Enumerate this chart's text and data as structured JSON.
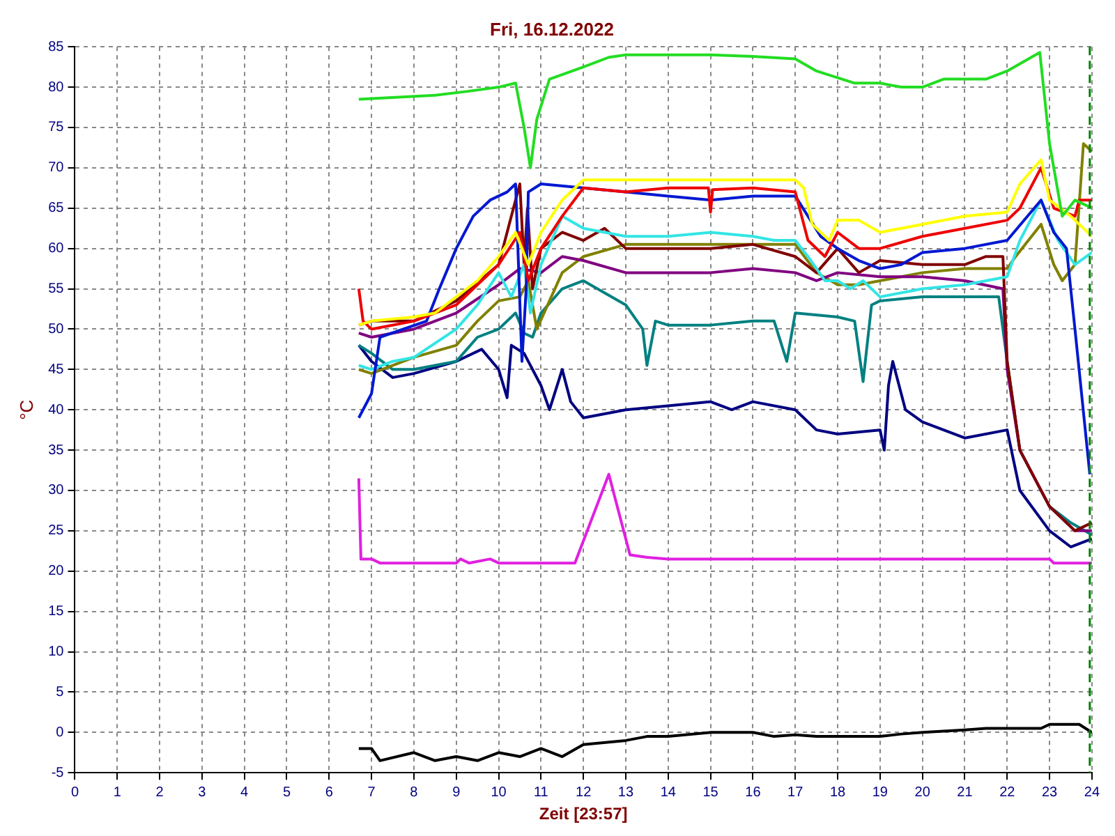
{
  "chart_data": {
    "type": "line",
    "title": "Fri, 16.12.2022",
    "xlabel": "Zeit [23:57]",
    "ylabel": "°C",
    "xlim": [
      0,
      24
    ],
    "xticks": [
      0,
      1,
      2,
      3,
      4,
      5,
      6,
      7,
      8,
      9,
      10,
      11,
      12,
      13,
      14,
      15,
      16,
      17,
      18,
      19,
      20,
      21,
      22,
      23,
      24
    ],
    "ylim": [
      -5,
      85
    ],
    "yticks": [
      -5,
      0,
      5,
      10,
      15,
      20,
      25,
      30,
      35,
      40,
      45,
      50,
      55,
      60,
      65,
      70,
      75,
      80,
      85
    ],
    "grid": true,
    "legend": false,
    "marker": "none",
    "line_style": "solid",
    "ref_lines": [
      {
        "axis": "x",
        "value": 23.95,
        "color": "#008000",
        "line_style": "dashed"
      }
    ],
    "series": [
      {
        "color": "#22dd22",
        "x": [
          6.7,
          8.5,
          9.3,
          10,
          10.4,
          10.6,
          10.75,
          10.9,
          11.2,
          12,
          12.6,
          13,
          14,
          15,
          16,
          17,
          17.5,
          18.4,
          19,
          19.5,
          20,
          20.5,
          21.5,
          22,
          22.77,
          23,
          23.3,
          23.6,
          24
        ],
        "values": [
          78.5,
          79,
          79.5,
          80,
          80.5,
          75,
          70,
          76,
          81,
          82.5,
          83.7,
          84,
          84,
          84,
          83.8,
          83.5,
          82,
          80.5,
          80.5,
          80,
          80,
          81,
          81,
          82,
          84.3,
          73,
          64,
          66,
          65
        ]
      },
      {
        "color": "#ffff00",
        "x": [
          6.7,
          7,
          8,
          8.5,
          9,
          9.5,
          10,
          10.4,
          10.7,
          11,
          11.5,
          12,
          13,
          14,
          15,
          16,
          17,
          17.2,
          17.4,
          17.8,
          18,
          18.5,
          19,
          20,
          21,
          22,
          22.3,
          22.8,
          23,
          23.5,
          24
        ],
        "values": [
          50.5,
          51,
          51.5,
          52,
          54,
          56,
          59,
          62,
          58,
          62,
          66,
          68.5,
          68.5,
          68.5,
          68.5,
          68.5,
          68.5,
          67.5,
          63,
          61,
          63.5,
          63.5,
          62,
          63,
          64,
          64.5,
          68,
          71,
          66,
          64,
          61.5
        ]
      },
      {
        "color": "#ee0000",
        "x": [
          6.7,
          6.8,
          7,
          8,
          9,
          10,
          10.5,
          10.7,
          11,
          11.5,
          12,
          13,
          14,
          14.95,
          15,
          15.05,
          16,
          17,
          17.3,
          17.7,
          18,
          18.5,
          19,
          20,
          21,
          22,
          22.3,
          22.8,
          23.1,
          23.6,
          23.7,
          24
        ],
        "values": [
          55,
          51,
          50,
          51,
          53,
          58,
          62,
          56,
          60,
          64,
          67.5,
          67,
          67.5,
          67.5,
          64.5,
          67.3,
          67.5,
          67,
          61,
          59,
          62,
          60,
          60,
          61.5,
          62.5,
          63.5,
          65,
          70,
          65,
          64,
          66,
          66
        ]
      },
      {
        "color": "#0018d0",
        "x": [
          6.7,
          7,
          7.2,
          8.3,
          8.6,
          9,
          9.4,
          9.8,
          10.2,
          10.4,
          10.55,
          10.65,
          10.7,
          11,
          12,
          13,
          14,
          15,
          16,
          17,
          17.3,
          17.6,
          18,
          18.5,
          19,
          19.5,
          20,
          21,
          22,
          22.8,
          23.1,
          23.4,
          23.6,
          23.95
        ],
        "values": [
          39,
          42,
          49,
          51,
          55,
          60,
          64,
          66,
          67,
          68,
          46,
          55,
          67,
          68,
          67.5,
          67,
          66.5,
          66,
          66.5,
          66.5,
          64,
          61.5,
          60,
          58.5,
          57.5,
          58,
          59.5,
          60,
          61,
          66,
          62,
          60,
          50,
          32
        ]
      },
      {
        "color": "#33e5e5",
        "x": [
          6.7,
          7,
          7.5,
          8,
          9,
          9.5,
          10,
          10.3,
          10.6,
          10.75,
          11,
          11.5,
          12,
          13,
          14,
          15,
          16,
          16.5,
          17,
          17.3,
          17.7,
          18,
          18.3,
          18.6,
          19,
          20,
          21,
          22,
          22.3,
          22.8,
          23.2,
          23.6,
          24
        ],
        "values": [
          45.5,
          45,
          46,
          46.5,
          50,
          53,
          57,
          54,
          58,
          52,
          58,
          64,
          62.5,
          61.5,
          61.5,
          62,
          61.5,
          61,
          61,
          59,
          56,
          56,
          55,
          56,
          54,
          55,
          55.5,
          56.5,
          61,
          66,
          61,
          58,
          59.5
        ]
      },
      {
        "color": "#800000",
        "x": [
          6.7,
          7,
          8,
          9,
          10,
          10.5,
          10.6,
          10.68,
          10.8,
          11,
          11.5,
          12,
          12.5,
          13,
          14,
          15,
          16,
          17,
          17.5,
          18,
          18.5,
          19,
          20,
          21,
          21.5,
          21.9,
          22,
          22.3,
          23,
          23.6,
          24
        ],
        "values": [
          50.5,
          51,
          51,
          53.5,
          58,
          68,
          58,
          65,
          55,
          60,
          62,
          61,
          62.5,
          60,
          60,
          60,
          60.5,
          59,
          57,
          60,
          57,
          58.5,
          58,
          58,
          59,
          59,
          46,
          35,
          28,
          25,
          26
        ]
      },
      {
        "color": "#800080",
        "x": [
          6.7,
          7,
          8,
          9,
          10,
          10.5,
          11,
          11.5,
          12,
          13,
          14,
          15,
          16,
          17,
          17.5,
          18,
          19,
          20,
          21,
          21.9,
          22,
          22.3,
          23,
          23.6,
          24
        ],
        "values": [
          49.5,
          49,
          50,
          52,
          55.5,
          57.5,
          57,
          59,
          58.5,
          57,
          57,
          57,
          57.5,
          57,
          56,
          57,
          56.5,
          56.5,
          56,
          55,
          45,
          35,
          28,
          25,
          25
        ]
      },
      {
        "color": "#808000",
        "x": [
          6.7,
          7,
          8,
          9,
          9.5,
          10,
          10.5,
          10.7,
          10.9,
          11.5,
          12,
          13,
          14,
          15,
          16,
          17,
          17.5,
          18,
          18.5,
          19,
          20,
          21,
          22,
          22.2,
          22.8,
          23.1,
          23.3,
          23.6,
          23.8,
          24
        ],
        "values": [
          45,
          44.5,
          46.5,
          48,
          51,
          53.5,
          54,
          56,
          50,
          57,
          59,
          60.5,
          60.5,
          60.5,
          60.5,
          60.5,
          57,
          55.5,
          55.5,
          56,
          57,
          57.5,
          57.5,
          59,
          63,
          58,
          56,
          58,
          73,
          72
        ]
      },
      {
        "color": "#008080",
        "x": [
          6.7,
          7,
          7.5,
          8,
          9,
          9.5,
          10,
          10.4,
          10.6,
          10.8,
          11,
          11.5,
          12,
          13,
          13.4,
          13.5,
          13.7,
          14,
          15,
          16,
          16.5,
          16.8,
          17,
          18,
          18.4,
          18.6,
          18.8,
          19,
          20,
          21,
          21.8,
          22,
          22.3,
          23,
          23.5,
          24
        ],
        "values": [
          48,
          47,
          45,
          45,
          46,
          49,
          50,
          52,
          49.5,
          49,
          52,
          55,
          56,
          53,
          50,
          45.5,
          51,
          50.5,
          50.5,
          51,
          51,
          46,
          52,
          51.5,
          51,
          43.5,
          53,
          53.5,
          54,
          54,
          54,
          46,
          35,
          28,
          26,
          24.5
        ]
      },
      {
        "color": "#000080",
        "x": [
          6.7,
          7,
          7.5,
          8,
          9,
          9.6,
          10,
          10.2,
          10.3,
          10.6,
          11,
          11.2,
          11.5,
          11.7,
          12,
          13,
          14,
          15,
          15.5,
          16,
          17,
          17.5,
          18,
          19,
          19.1,
          19.2,
          19.3,
          19.6,
          20,
          21,
          22,
          22.3,
          23,
          23.5,
          24
        ],
        "values": [
          48,
          46,
          44,
          44.5,
          46,
          47.5,
          45,
          41.5,
          48,
          47,
          43,
          40,
          45,
          41,
          39,
          40,
          40.5,
          41,
          40,
          41,
          40,
          37.5,
          37,
          37.5,
          35,
          43,
          46,
          40,
          38.5,
          36.5,
          37.5,
          30,
          25,
          23,
          24
        ]
      },
      {
        "color": "#e020e0",
        "x": [
          6.7,
          6.75,
          7,
          7.2,
          9,
          9.1,
          9.3,
          9.8,
          10,
          11.8,
          12.6,
          13.1,
          13.5,
          14,
          23,
          23.1,
          24
        ],
        "values": [
          31.5,
          21.5,
          21.5,
          21,
          21,
          21.5,
          21,
          21.5,
          21,
          21,
          32,
          22,
          21.7,
          21.5,
          21.5,
          21,
          21
        ]
      },
      {
        "color": "#000000",
        "x": [
          6.7,
          7,
          7.2,
          8,
          8.5,
          9,
          9.5,
          10,
          10.5,
          11,
          11.5,
          12,
          13,
          13.5,
          14,
          15,
          16,
          16.5,
          17,
          17.5,
          18,
          19,
          19.5,
          20,
          21,
          21.5,
          22,
          22.8,
          23,
          23.7,
          24
        ],
        "values": [
          -2,
          -2,
          -3.5,
          -2.5,
          -3.5,
          -3,
          -3.5,
          -2.5,
          -3,
          -2,
          -3,
          -1.5,
          -1,
          -0.5,
          -0.5,
          0,
          0,
          -0.5,
          -0.3,
          -0.5,
          -0.5,
          -0.5,
          -0.2,
          0,
          0.3,
          0.5,
          0.5,
          0.5,
          1,
          1,
          0
        ]
      }
    ]
  }
}
